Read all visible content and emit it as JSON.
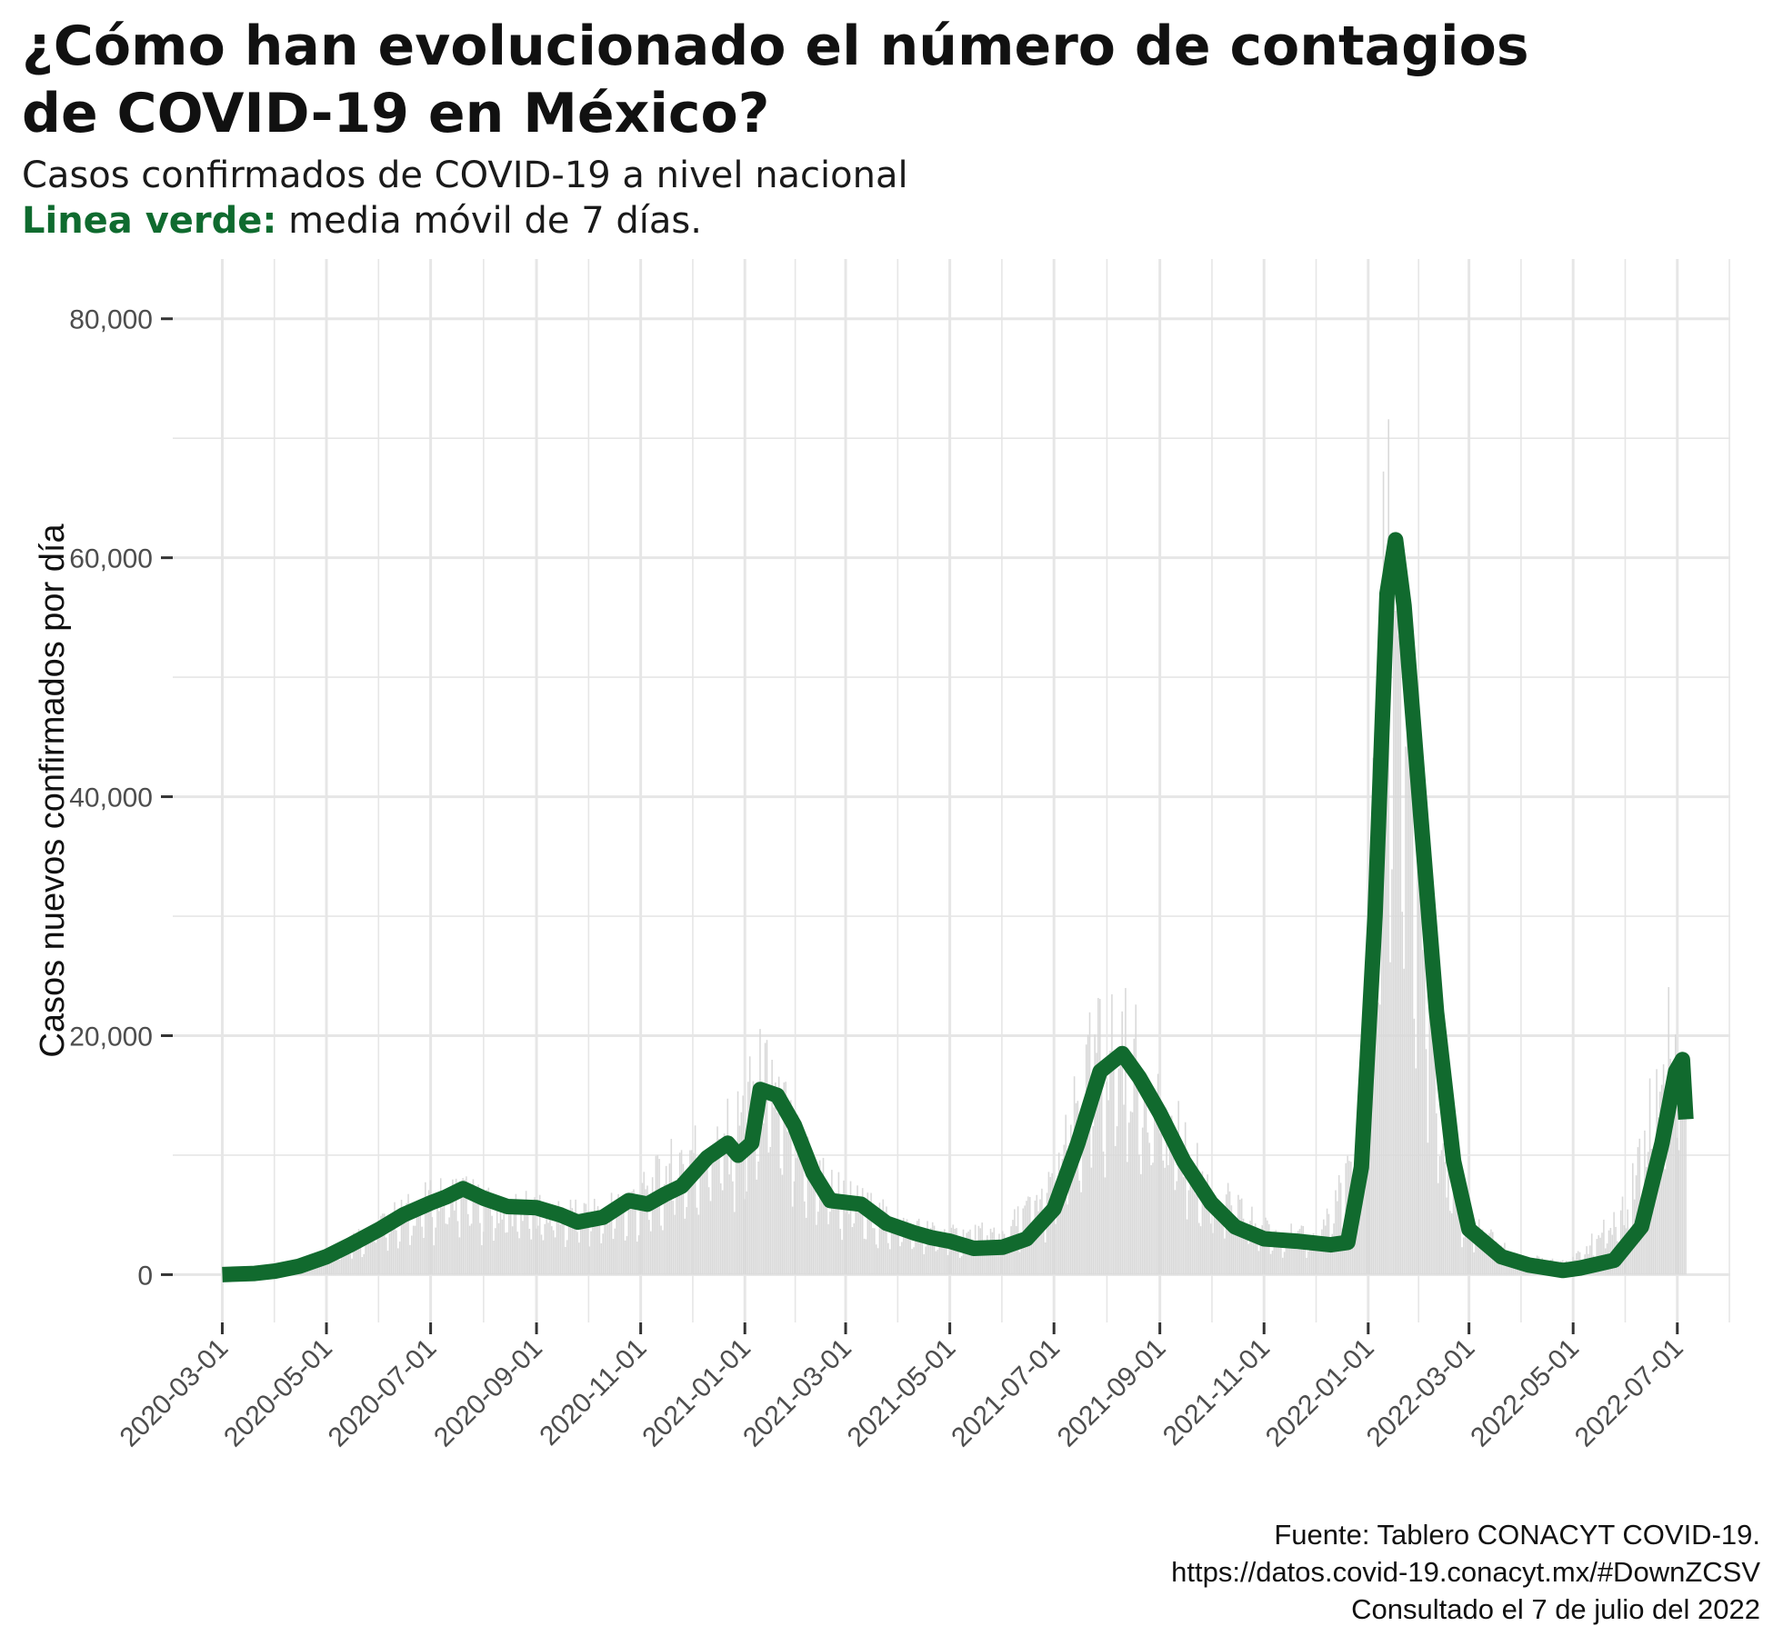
{
  "header": {
    "title_line1": "¿Cómo han evolucionado el número de contagios",
    "title_line2": "de COVID-19 en México?",
    "subtitle_line1": "Casos confirmados de COVID-19 a nivel nacional",
    "subtitle_line2_strong": "Linea verde:",
    "subtitle_line2_rest": " media móvil de 7 días."
  },
  "caption": {
    "line1": "Fuente: Tablero CONACYT COVID-19.",
    "line2": "https://datos.covid-19.conacyt.mx/#DownZCSV",
    "line3": "Consultado el 7 de julio del 2022"
  },
  "colors": {
    "line": "#116a2e",
    "bars": "#d9d9d9",
    "grid": "#e6e6e6",
    "subtitle_accent": "#0f6b2f"
  },
  "chart_data": {
    "type": "bar",
    "ylabel": "Casos nuevos confirmados por día",
    "xlabel": "",
    "x_range": [
      "2020-02-01",
      "2022-08-01"
    ],
    "ylim": [
      -4000,
      85000
    ],
    "y_ticks": [
      0,
      20000,
      40000,
      60000,
      80000
    ],
    "y_tick_labels": [
      "0",
      "20,000",
      "40,000",
      "60,000",
      "80,000"
    ],
    "x_ticks": [
      "2020-03-01",
      "2020-05-01",
      "2020-07-01",
      "2020-09-01",
      "2020-11-01",
      "2021-01-01",
      "2021-03-01",
      "2021-05-01",
      "2021-07-01",
      "2021-09-01",
      "2021-11-01",
      "2022-01-01",
      "2022-03-01",
      "2022-05-01",
      "2022-07-01"
    ],
    "grid": true,
    "series": [
      {
        "kind": "bars",
        "daily_peaks": [
          [
            "2020-03-01",
            0
          ],
          [
            "2020-04-01",
            500
          ],
          [
            "2020-05-01",
            2500
          ],
          [
            "2020-06-01",
            5500
          ],
          [
            "2020-07-01",
            8000
          ],
          [
            "2020-07-20",
            9000
          ],
          [
            "2020-08-01",
            7500
          ],
          [
            "2020-09-01",
            7000
          ],
          [
            "2020-10-01",
            6500
          ],
          [
            "2020-11-01",
            8500
          ],
          [
            "2020-12-01",
            13500
          ],
          [
            "2020-12-25",
            15000
          ],
          [
            "2021-01-10",
            21000
          ],
          [
            "2021-01-20",
            19500
          ],
          [
            "2021-02-01",
            13500
          ],
          [
            "2021-03-01",
            8500
          ],
          [
            "2021-04-01",
            5500
          ],
          [
            "2021-05-01",
            4200
          ],
          [
            "2021-06-01",
            4500
          ],
          [
            "2021-07-01",
            9500
          ],
          [
            "2021-07-25",
            24000
          ],
          [
            "2021-08-10",
            25500
          ],
          [
            "2021-09-01",
            18000
          ],
          [
            "2021-10-01",
            9000
          ],
          [
            "2021-11-01",
            5000
          ],
          [
            "2021-12-01",
            3800
          ],
          [
            "2021-12-28",
            13000
          ],
          [
            "2022-01-05",
            50000
          ],
          [
            "2022-01-12",
            75000
          ],
          [
            "2022-01-18",
            80500
          ],
          [
            "2022-01-25",
            55000
          ],
          [
            "2022-02-01",
            42000
          ],
          [
            "2022-02-15",
            12000
          ],
          [
            "2022-03-01",
            5500
          ],
          [
            "2022-04-01",
            1800
          ],
          [
            "2022-05-01",
            1500
          ],
          [
            "2022-06-01",
            7000
          ],
          [
            "2022-06-25",
            25000
          ],
          [
            "2022-07-06",
            21000
          ]
        ]
      },
      {
        "kind": "line",
        "points": [
          [
            "2020-03-01",
            0
          ],
          [
            "2020-03-20",
            100
          ],
          [
            "2020-04-01",
            300
          ],
          [
            "2020-04-15",
            700
          ],
          [
            "2020-05-01",
            1500
          ],
          [
            "2020-05-15",
            2500
          ],
          [
            "2020-06-01",
            3800
          ],
          [
            "2020-06-15",
            5000
          ],
          [
            "2020-07-01",
            6000
          ],
          [
            "2020-07-10",
            6500
          ],
          [
            "2020-07-20",
            7200
          ],
          [
            "2020-08-01",
            6400
          ],
          [
            "2020-08-15",
            5700
          ],
          [
            "2020-09-01",
            5600
          ],
          [
            "2020-09-15",
            5000
          ],
          [
            "2020-09-25",
            4400
          ],
          [
            "2020-10-10",
            4800
          ],
          [
            "2020-10-25",
            6200
          ],
          [
            "2020-11-05",
            5900
          ],
          [
            "2020-11-15",
            6700
          ],
          [
            "2020-11-25",
            7400
          ],
          [
            "2020-12-10",
            9800
          ],
          [
            "2020-12-22",
            11000
          ],
          [
            "2020-12-28",
            10000
          ],
          [
            "2021-01-05",
            11000
          ],
          [
            "2021-01-10",
            15500
          ],
          [
            "2021-01-20",
            15000
          ],
          [
            "2021-01-30",
            12500
          ],
          [
            "2021-02-10",
            8500
          ],
          [
            "2021-02-20",
            6200
          ],
          [
            "2021-03-10",
            5900
          ],
          [
            "2021-03-25",
            4300
          ],
          [
            "2021-04-10",
            3500
          ],
          [
            "2021-04-20",
            3100
          ],
          [
            "2021-05-01",
            2800
          ],
          [
            "2021-05-15",
            2200
          ],
          [
            "2021-06-01",
            2300
          ],
          [
            "2021-06-15",
            3000
          ],
          [
            "2021-07-01",
            5500
          ],
          [
            "2021-07-15",
            11000
          ],
          [
            "2021-07-28",
            17000
          ],
          [
            "2021-08-10",
            18500
          ],
          [
            "2021-08-20",
            16500
          ],
          [
            "2021-09-01",
            13500
          ],
          [
            "2021-09-15",
            9500
          ],
          [
            "2021-10-01",
            6000
          ],
          [
            "2021-10-15",
            4000
          ],
          [
            "2021-11-01",
            3000
          ],
          [
            "2021-11-20",
            2800
          ],
          [
            "2021-12-10",
            2500
          ],
          [
            "2021-12-20",
            2700
          ],
          [
            "2021-12-28",
            9000
          ],
          [
            "2022-01-05",
            30000
          ],
          [
            "2022-01-12",
            57000
          ],
          [
            "2022-01-17",
            61500
          ],
          [
            "2022-01-22",
            56000
          ],
          [
            "2022-02-01",
            38000
          ],
          [
            "2022-02-10",
            22000
          ],
          [
            "2022-02-20",
            9500
          ],
          [
            "2022-03-01",
            3800
          ],
          [
            "2022-03-20",
            1500
          ],
          [
            "2022-04-05",
            800
          ],
          [
            "2022-04-25",
            350
          ],
          [
            "2022-05-05",
            550
          ],
          [
            "2022-05-25",
            1200
          ],
          [
            "2022-06-10",
            4000
          ],
          [
            "2022-06-22",
            11000
          ],
          [
            "2022-06-30",
            17000
          ],
          [
            "2022-07-04",
            18000
          ],
          [
            "2022-07-06",
            13000
          ]
        ]
      }
    ]
  }
}
